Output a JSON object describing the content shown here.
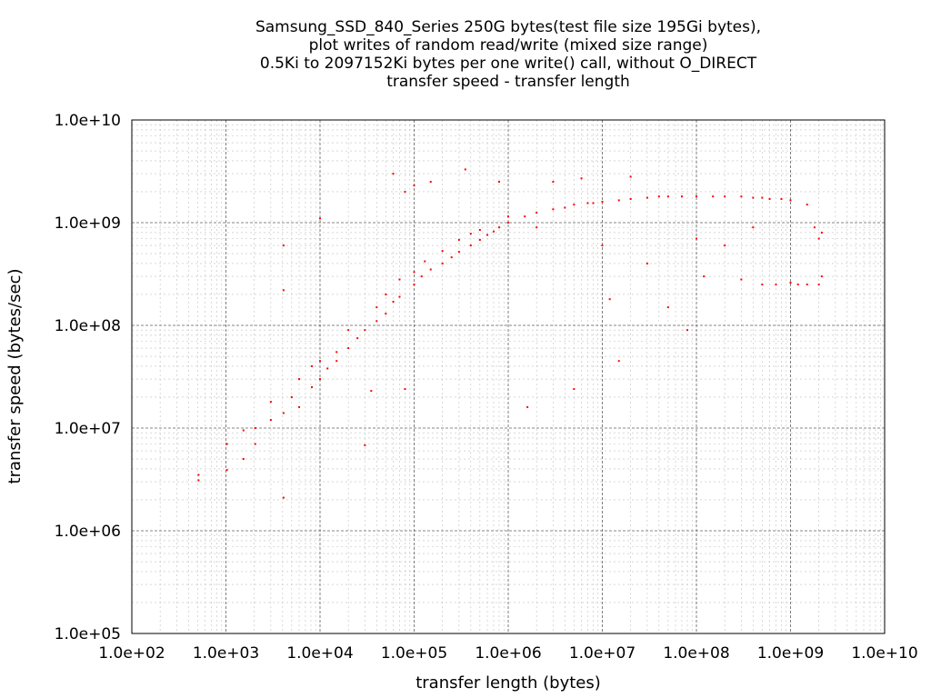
{
  "chart_data": {
    "type": "scatter",
    "title_lines": [
      "Samsung_SSD_840_Series 250G bytes(test file size 195Gi bytes),",
      "plot writes of random read/write (mixed size range)",
      "0.5Ki to 2097152Ki bytes per one write() call, without O_DIRECT",
      "transfer speed - transfer length"
    ],
    "xlabel": "transfer length (bytes)",
    "ylabel": "transfer speed (bytes/sec)",
    "x_scale": "log",
    "y_scale": "log",
    "xlim": [
      100,
      10000000000
    ],
    "ylim": [
      100000,
      10000000000
    ],
    "x_ticks": [
      {
        "value": 100,
        "label": "1.0e+02"
      },
      {
        "value": 1000,
        "label": "1.0e+03"
      },
      {
        "value": 10000,
        "label": "1.0e+04"
      },
      {
        "value": 100000,
        "label": "1.0e+05"
      },
      {
        "value": 1000000,
        "label": "1.0e+06"
      },
      {
        "value": 10000000,
        "label": "1.0e+07"
      },
      {
        "value": 100000000,
        "label": "1.0e+08"
      },
      {
        "value": 1000000000,
        "label": "1.0e+09"
      },
      {
        "value": 10000000000,
        "label": "1.0e+10"
      }
    ],
    "y_ticks": [
      {
        "value": 100000,
        "label": "1.0e+05"
      },
      {
        "value": 1000000,
        "label": "1.0e+06"
      },
      {
        "value": 10000000,
        "label": "1.0e+07"
      },
      {
        "value": 100000000,
        "label": "1.0e+08"
      },
      {
        "value": 1000000000,
        "label": "1.0e+09"
      },
      {
        "value": 10000000000,
        "label": "1.0e+10"
      }
    ],
    "grid": true,
    "point_color": "#ff0000",
    "series": [
      {
        "values": [
          [
            512,
            3500000
          ],
          [
            512,
            3100000
          ],
          [
            1024,
            3900000
          ],
          [
            1024,
            7000000
          ],
          [
            1536,
            5000000
          ],
          [
            1536,
            9500000
          ],
          [
            2048,
            7000000
          ],
          [
            2048,
            10000000
          ],
          [
            3000,
            12000000
          ],
          [
            3000,
            18000000
          ],
          [
            4096,
            14000000
          ],
          [
            4096,
            2100000
          ],
          [
            4096,
            220000000
          ],
          [
            4096,
            600000000
          ],
          [
            5000,
            20000000
          ],
          [
            6000,
            16000000
          ],
          [
            6000,
            30000000
          ],
          [
            8192,
            25000000
          ],
          [
            8192,
            40000000
          ],
          [
            10000,
            30000000
          ],
          [
            10000,
            45000000
          ],
          [
            10000,
            1100000000
          ],
          [
            12000,
            38000000
          ],
          [
            15000,
            45000000
          ],
          [
            15000,
            55000000
          ],
          [
            20000,
            60000000
          ],
          [
            20000,
            90000000
          ],
          [
            25000,
            75000000
          ],
          [
            30000,
            90000000
          ],
          [
            30000,
            6800000
          ],
          [
            35000,
            23000000
          ],
          [
            40000,
            110000000
          ],
          [
            40000,
            150000000
          ],
          [
            50000,
            130000000
          ],
          [
            50000,
            200000000
          ],
          [
            60000,
            170000000
          ],
          [
            60000,
            3000000000
          ],
          [
            70000,
            190000000
          ],
          [
            70000,
            280000000
          ],
          [
            80000,
            24000000
          ],
          [
            80000,
            2000000000
          ],
          [
            100000,
            250000000
          ],
          [
            100000,
            330000000
          ],
          [
            100000,
            2300000000
          ],
          [
            120000,
            300000000
          ],
          [
            130000,
            420000000
          ],
          [
            150000,
            350000000
          ],
          [
            150000,
            2500000000
          ],
          [
            200000,
            400000000
          ],
          [
            200000,
            530000000
          ],
          [
            250000,
            460000000
          ],
          [
            300000,
            520000000
          ],
          [
            300000,
            680000000
          ],
          [
            350000,
            3300000000
          ],
          [
            400000,
            600000000
          ],
          [
            400000,
            780000000
          ],
          [
            500000,
            680000000
          ],
          [
            500000,
            850000000
          ],
          [
            600000,
            760000000
          ],
          [
            700000,
            820000000
          ],
          [
            800000,
            900000000
          ],
          [
            800000,
            2500000000
          ],
          [
            1000000,
            1000000000
          ],
          [
            1000000,
            1150000000
          ],
          [
            1500000,
            1150000000
          ],
          [
            1600000,
            16000000
          ],
          [
            2000000,
            1250000000
          ],
          [
            2000000,
            900000000
          ],
          [
            3000000,
            1350000000
          ],
          [
            3000000,
            2500000000
          ],
          [
            4000000,
            1400000000
          ],
          [
            5000000,
            1500000000
          ],
          [
            5000000,
            24000000
          ],
          [
            6000000,
            2700000000
          ],
          [
            7000000,
            1550000000
          ],
          [
            8000000,
            1550000000
          ],
          [
            10000000,
            1600000000
          ],
          [
            10000000,
            600000000
          ],
          [
            12000000,
            180000000
          ],
          [
            15000000,
            1650000000
          ],
          [
            15000000,
            45000000
          ],
          [
            20000000,
            1700000000
          ],
          [
            20000000,
            2800000000
          ],
          [
            30000000,
            1750000000
          ],
          [
            30000000,
            400000000
          ],
          [
            40000000,
            1800000000
          ],
          [
            50000000,
            1800000000
          ],
          [
            50000000,
            150000000
          ],
          [
            70000000,
            1800000000
          ],
          [
            80000000,
            90000000
          ],
          [
            100000000,
            1800000000
          ],
          [
            100000000,
            700000000
          ],
          [
            120000000,
            300000000
          ],
          [
            150000000,
            1800000000
          ],
          [
            200000000,
            1800000000
          ],
          [
            200000000,
            600000000
          ],
          [
            300000000,
            1800000000
          ],
          [
            300000000,
            280000000
          ],
          [
            400000000,
            1750000000
          ],
          [
            400000000,
            900000000
          ],
          [
            500000000,
            1750000000
          ],
          [
            500000000,
            250000000
          ],
          [
            600000000,
            1700000000
          ],
          [
            700000000,
            250000000
          ],
          [
            800000000,
            1700000000
          ],
          [
            1000000000,
            1650000000
          ],
          [
            1000000000,
            260000000
          ],
          [
            1200000000,
            250000000
          ],
          [
            1500000000,
            1500000000
          ],
          [
            1500000000,
            250000000
          ],
          [
            1800000000,
            900000000
          ],
          [
            2000000000,
            250000000
          ],
          [
            2000000000,
            700000000
          ],
          [
            2147483648,
            300000000
          ],
          [
            2147483648,
            800000000
          ]
        ]
      }
    ]
  }
}
